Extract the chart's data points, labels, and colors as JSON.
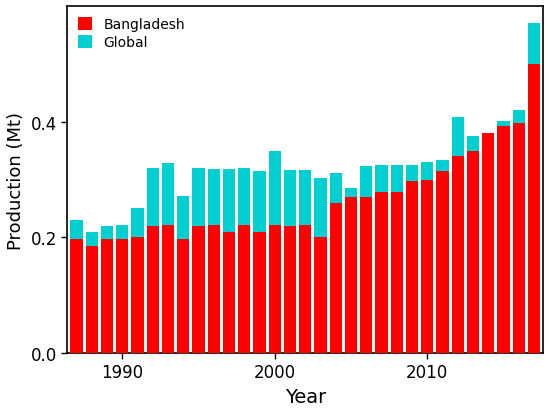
{
  "years": [
    1987,
    1988,
    1989,
    1990,
    1991,
    1992,
    1993,
    1994,
    1995,
    1996,
    1997,
    1998,
    1999,
    2000,
    2001,
    2002,
    2003,
    2004,
    2005,
    2006,
    2007,
    2008,
    2009,
    2010,
    2011,
    2012,
    2013,
    2014,
    2015,
    2016,
    2017
  ],
  "bangladesh": [
    0.198,
    0.185,
    0.197,
    0.198,
    0.201,
    0.22,
    0.222,
    0.197,
    0.22,
    0.222,
    0.21,
    0.222,
    0.21,
    0.222,
    0.22,
    0.222,
    0.2,
    0.26,
    0.27,
    0.27,
    0.278,
    0.278,
    0.298,
    0.3,
    0.315,
    0.34,
    0.35,
    0.38,
    0.393,
    0.398,
    0.5
  ],
  "global": [
    0.23,
    0.21,
    0.22,
    0.222,
    0.25,
    0.32,
    0.328,
    0.272,
    0.32,
    0.318,
    0.318,
    0.32,
    0.315,
    0.35,
    0.316,
    0.316,
    0.302,
    0.312,
    0.285,
    0.323,
    0.325,
    0.325,
    0.325,
    0.33,
    0.333,
    0.408,
    0.375,
    0.375,
    0.402,
    0.42,
    0.57
  ],
  "bar_width": 0.8,
  "bangladesh_color": "#FF0000",
  "global_color": "#00CED1",
  "ylabel": "Production (Mt)",
  "xlabel": "Year",
  "ylim": [
    0.0,
    0.6
  ],
  "yticks": [
    0.0,
    0.2,
    0.4
  ],
  "tick_years": [
    1990,
    2000,
    2010
  ],
  "legend_labels": [
    "Bangladesh",
    "Global"
  ],
  "bg_color": "#FFFFFF",
  "axis_linewidth": 1.2,
  "legend_fontsize": 10,
  "xlabel_fontsize": 14,
  "ylabel_fontsize": 13,
  "tick_fontsize": 12
}
